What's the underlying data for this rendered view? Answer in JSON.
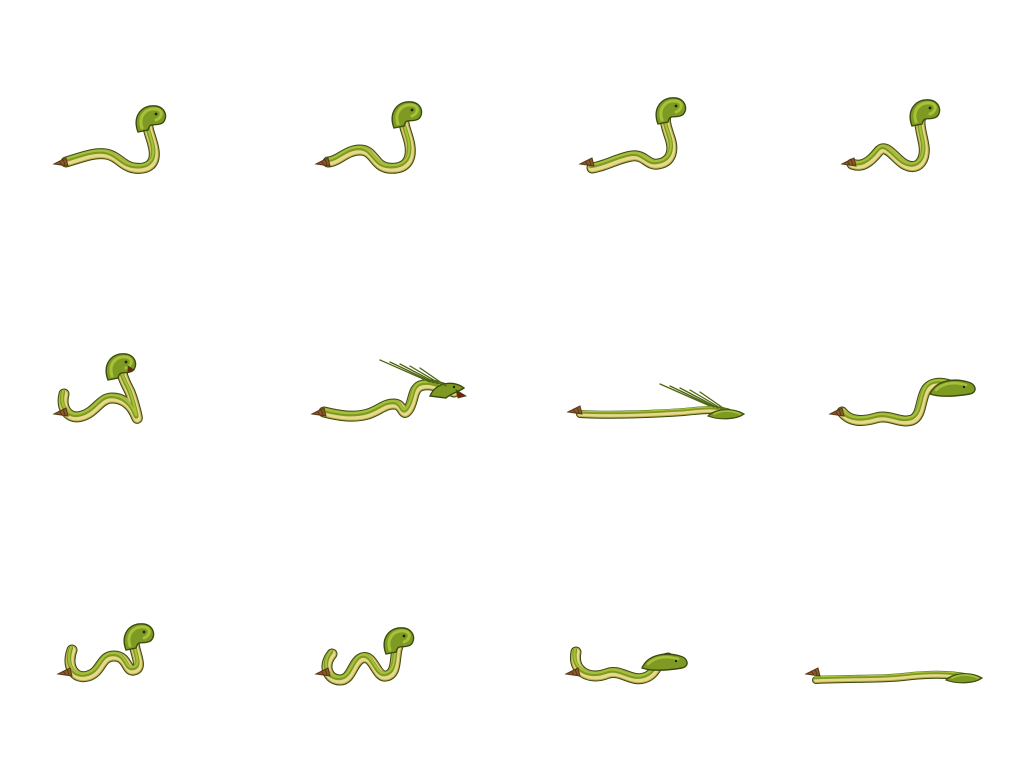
{
  "sheet": {
    "subject": "cobra",
    "layout": "grid",
    "rows": 3,
    "cols": 4,
    "background": "#ffffff",
    "palette": {
      "body_light": "#a6c23a",
      "body_mid": "#7f9a22",
      "body_dark": "#4e6512",
      "outline": "#3a4a0e",
      "belly": "#e6d98a",
      "belly_dark": "#b9a94e",
      "rattle": "#8a5a2b",
      "rattle_dark": "#5a3716"
    },
    "frames": [
      {
        "name": "coil-rear-1",
        "pose": "coil"
      },
      {
        "name": "coil-rear-2",
        "pose": "coil"
      },
      {
        "name": "coil-rear-3",
        "pose": "coil"
      },
      {
        "name": "coil-rear-4",
        "pose": "coil"
      },
      {
        "name": "coil-strike-prep",
        "pose": "coil"
      },
      {
        "name": "strike-open-mouth",
        "pose": "strike"
      },
      {
        "name": "strike-full-extend",
        "pose": "lunge"
      },
      {
        "name": "recover-slither",
        "pose": "slither"
      },
      {
        "name": "slither-1",
        "pose": "slither-rear"
      },
      {
        "name": "slither-2",
        "pose": "slither-rear"
      },
      {
        "name": "slither-3",
        "pose": "slither-low"
      },
      {
        "name": "slither-flat",
        "pose": "flat"
      }
    ]
  }
}
